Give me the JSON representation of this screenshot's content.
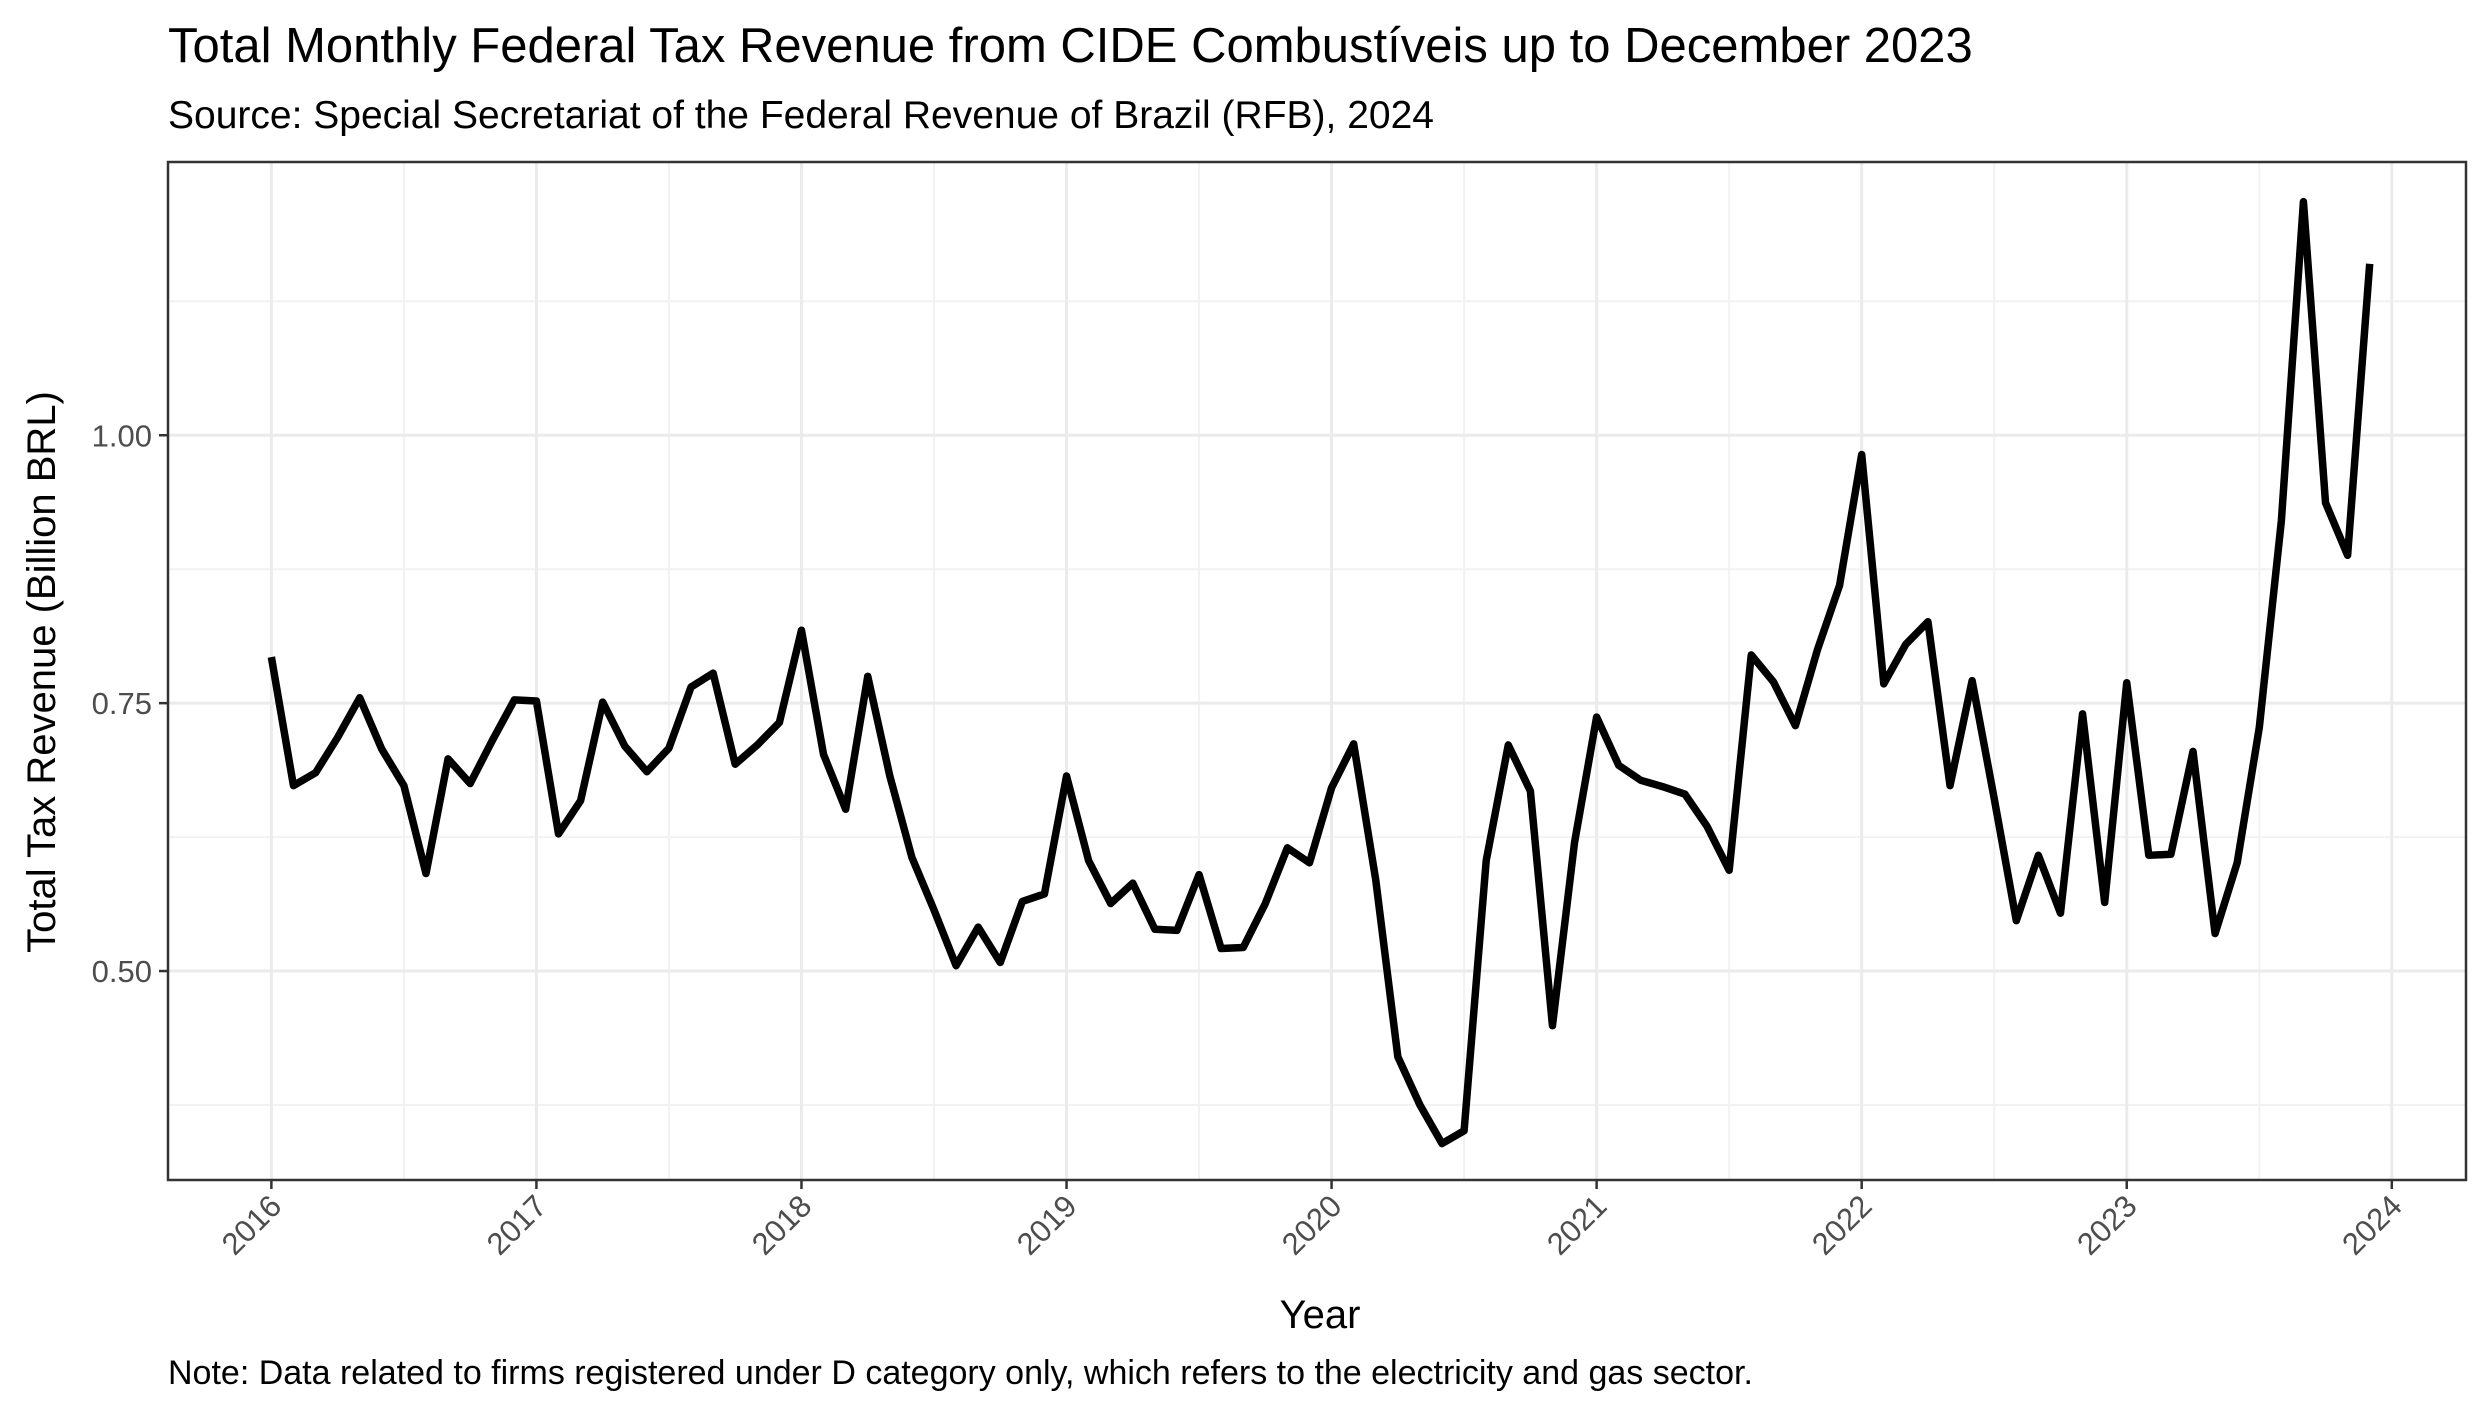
{
  "chart_data": {
    "type": "line",
    "title": "Total Monthly Federal Tax Revenue from CIDE Combustíveis up to December 2023",
    "subtitle": "Source: Special Secretariat of the Federal Revenue of Brazil (RFB), 2024",
    "caption": "Note: Data related to firms registered under D category only, which refers to the electricity and gas sector.",
    "xlabel": "Year",
    "ylabel": "Total Tax Revenue (Billion BRL)",
    "xlim": [
      2015.61,
      2024.28
    ],
    "ylim": [
      0.305,
      1.255
    ],
    "x_ticks": [
      2016,
      2017,
      2018,
      2019,
      2020,
      2021,
      2022,
      2023,
      2024
    ],
    "x_tick_labels": [
      "2016",
      "2017",
      "2018",
      "2019",
      "2020",
      "2021",
      "2022",
      "2023",
      "2024"
    ],
    "y_ticks": [
      0.5,
      0.75,
      1.0
    ],
    "y_tick_labels": [
      "0.50",
      "0.75",
      "1.00"
    ],
    "y_minor_ticks": [
      0.375,
      0.625,
      0.875,
      1.125
    ],
    "grid": true,
    "legend": "none",
    "series": [
      {
        "color": "#000000",
        "x": [
          "2016-01",
          "2016-02",
          "2016-03",
          "2016-04",
          "2016-05",
          "2016-06",
          "2016-07",
          "2016-08",
          "2016-09",
          "2016-10",
          "2016-11",
          "2016-12",
          "2017-01",
          "2017-02",
          "2017-03",
          "2017-04",
          "2017-05",
          "2017-06",
          "2017-07",
          "2017-08",
          "2017-09",
          "2017-10",
          "2017-11",
          "2017-12",
          "2018-01",
          "2018-02",
          "2018-03",
          "2018-04",
          "2018-05",
          "2018-06",
          "2018-07",
          "2018-08",
          "2018-09",
          "2018-10",
          "2018-11",
          "2018-12",
          "2019-01",
          "2019-02",
          "2019-03",
          "2019-04",
          "2019-05",
          "2019-06",
          "2019-07",
          "2019-08",
          "2019-09",
          "2019-10",
          "2019-11",
          "2019-12",
          "2020-01",
          "2020-02",
          "2020-03",
          "2020-04",
          "2020-05",
          "2020-06",
          "2020-07",
          "2020-08",
          "2020-09",
          "2020-10",
          "2020-11",
          "2020-12",
          "2021-01",
          "2021-02",
          "2021-03",
          "2021-04",
          "2021-05",
          "2021-06",
          "2021-07",
          "2021-08",
          "2021-09",
          "2021-10",
          "2021-11",
          "2021-12",
          "2022-01",
          "2022-02",
          "2022-03",
          "2022-04",
          "2022-05",
          "2022-06",
          "2022-07",
          "2022-08",
          "2022-09",
          "2022-10",
          "2022-11",
          "2022-12",
          "2023-01",
          "2023-02",
          "2023-03",
          "2023-04",
          "2023-05",
          "2023-06",
          "2023-07",
          "2023-08",
          "2023-09",
          "2023-10",
          "2023-11",
          "2023-12"
        ],
        "values": [
          0.793,
          0.673,
          0.685,
          0.718,
          0.755,
          0.707,
          0.673,
          0.591,
          0.698,
          0.675,
          0.715,
          0.753,
          0.752,
          0.628,
          0.659,
          0.751,
          0.71,
          0.686,
          0.708,
          0.765,
          0.778,
          0.693,
          0.711,
          0.732,
          0.818,
          0.702,
          0.651,
          0.775,
          0.682,
          0.606,
          0.557,
          0.505,
          0.541,
          0.508,
          0.565,
          0.572,
          0.682,
          0.603,
          0.563,
          0.582,
          0.539,
          0.538,
          0.59,
          0.521,
          0.522,
          0.563,
          0.615,
          0.601,
          0.671,
          0.712,
          0.585,
          0.42,
          0.375,
          0.339,
          0.351,
          0.603,
          0.711,
          0.668,
          0.449,
          0.62,
          0.737,
          0.692,
          0.678,
          0.672,
          0.665,
          0.635,
          0.594,
          0.795,
          0.77,
          0.729,
          0.8,
          0.86,
          0.982,
          0.768,
          0.805,
          0.826,
          0.673,
          0.771,
          0.661,
          0.547,
          0.608,
          0.554,
          0.74,
          0.564,
          0.769,
          0.608,
          0.609,
          0.705,
          0.535,
          0.601,
          0.727,
          0.92,
          1.218,
          0.937,
          0.888,
          1.16
        ]
      }
    ]
  }
}
